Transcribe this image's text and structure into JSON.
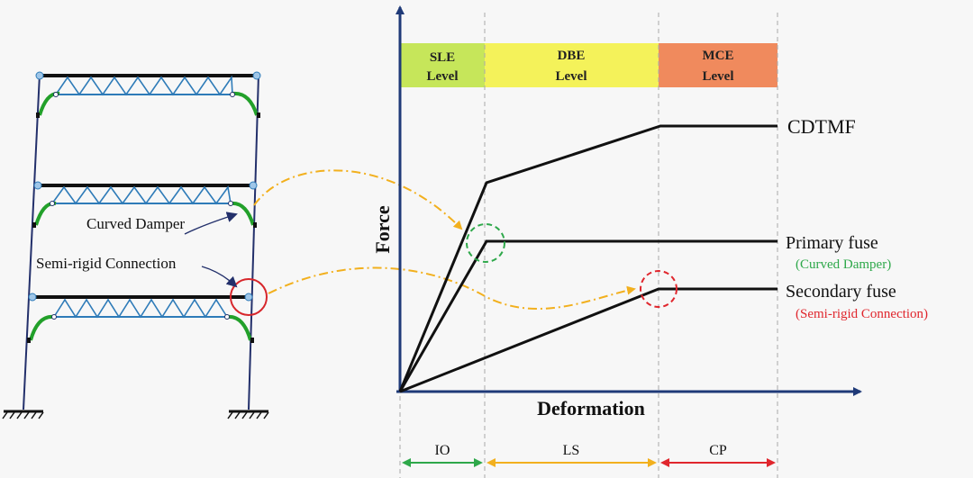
{
  "colors": {
    "background": "#f7f7f7",
    "frame": "#23306b",
    "truss": "#2e7bb8",
    "damper": "#22a02a",
    "connection": "#d7262b",
    "arrow_dash": "#f2b01e",
    "axis": "#1f3a78",
    "sle": "#c6e65a",
    "dbe": "#f4f25a",
    "mce": "#f08a5d",
    "io": "#2ea84a",
    "ls": "#f2b01e",
    "cp": "#e0262d"
  },
  "levels": {
    "sle": {
      "line1": "SLE",
      "line2": "Level"
    },
    "dbe": {
      "line1": "DBE",
      "line2": "Level"
    },
    "mce": {
      "line1": "MCE",
      "line2": "Level"
    }
  },
  "axes": {
    "y_label": "Force",
    "x_label": "Deformation"
  },
  "curves": {
    "cdtmf": "CDTMF",
    "primary": "Primary fuse",
    "primary_sub": "(Curved Damper)",
    "secondary": "Secondary fuse",
    "secondary_sub": "(Semi-rigid Connection)"
  },
  "frame_labels": {
    "curved_damper": "Curved Damper",
    "semi_rigid": "Semi-rigid Connection"
  },
  "ranges": {
    "io": "IO",
    "ls": "LS",
    "cp": "CP"
  }
}
